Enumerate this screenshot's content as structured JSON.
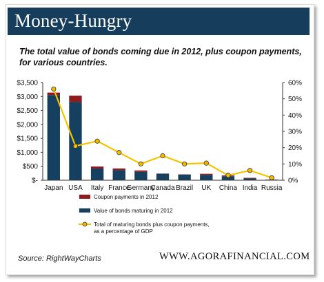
{
  "header": {
    "title": "Money-Hungry"
  },
  "subtitle": "The total value of bonds coming due in 2012, plus coupon payments, for various countries.",
  "source": "Source: RightWayCharts",
  "website": "WWW.AGORAFINANCIAL.COM",
  "colors": {
    "header_bg": "#173d5c",
    "bonds": "#16405f",
    "coupon": "#8e1b1e",
    "line": "#f5c400",
    "marker": "#f2b900"
  },
  "chart_data": {
    "type": "bar",
    "stacked": true,
    "categories": [
      "Japan",
      "USA",
      "Italy",
      "France",
      "Germany",
      "Canada",
      "Brazil",
      "UK",
      "China",
      "India",
      "Russia"
    ],
    "series": [
      {
        "name": "Value of bonds maturing in 2012",
        "values": [
          3050,
          2800,
          420,
          360,
          300,
          230,
          200,
          190,
          140,
          70,
          20
        ]
      },
      {
        "name": "Coupon payments in 2012",
        "values": [
          90,
          230,
          70,
          60,
          50,
          10,
          10,
          40,
          30,
          15,
          5
        ]
      }
    ],
    "line_series": {
      "name": "Total of maturing bonds plus coupon payments, as a percentage of GDP",
      "axis": "right",
      "values": [
        56,
        21,
        24,
        17,
        10,
        15,
        10,
        10.5,
        3,
        6,
        1.5
      ]
    },
    "y_left": {
      "ticks": [
        "$3,500",
        "$3,000",
        "$2,500",
        "$2,000",
        "$1,500",
        "$1,000",
        "$500",
        "$-"
      ],
      "ylim": [
        0,
        3500
      ]
    },
    "y_right": {
      "ticks": [
        "60%",
        "50%",
        "40%",
        "30%",
        "20%",
        "10%",
        "0%"
      ],
      "ylim": [
        0,
        60
      ]
    },
    "legend": {
      "placement": "bottom",
      "items": [
        "Coupon payments in 2012",
        "Value of bonds maturing in 2012",
        "Total of maturing bonds plus coupon payments,",
        "as a percentage of GDP"
      ]
    }
  }
}
